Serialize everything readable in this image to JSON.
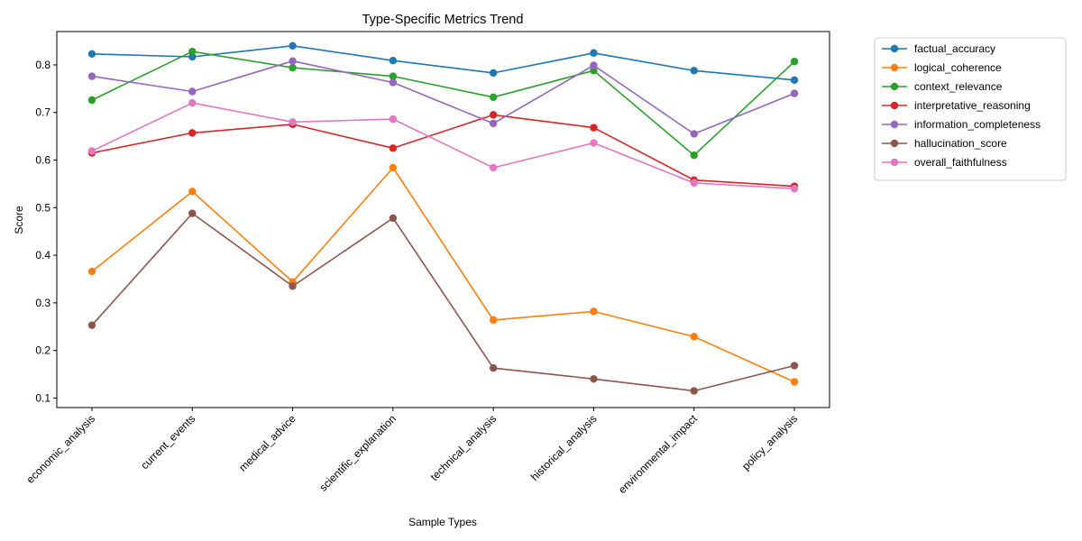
{
  "chart_data": {
    "type": "line",
    "title": "Type-Specific Metrics Trend",
    "xlabel": "Sample Types",
    "ylabel": "Score",
    "categories": [
      "economic_analysis",
      "current_events",
      "medical_advice",
      "scientific_explanation",
      "technical_analysis",
      "historical_analysis",
      "environmental_impact",
      "policy_analysis"
    ],
    "yticks": [
      "0.1",
      "0.2",
      "0.3",
      "0.4",
      "0.5",
      "0.6",
      "0.7",
      "0.8"
    ],
    "ylim": [
      0.08,
      0.87
    ],
    "grid": false,
    "legend_position": "outside-right",
    "series": [
      {
        "name": "factual_accuracy",
        "color": "#1f77b4",
        "values": [
          0.823,
          0.817,
          0.84,
          0.809,
          0.783,
          0.825,
          0.788,
          0.768
        ]
      },
      {
        "name": "logical_coherence",
        "color": "#ff7f0e",
        "values": [
          0.366,
          0.534,
          0.344,
          0.584,
          0.264,
          0.282,
          0.229,
          0.134
        ]
      },
      {
        "name": "context_relevance",
        "color": "#2ca02c",
        "values": [
          0.726,
          0.828,
          0.794,
          0.776,
          0.732,
          0.788,
          0.61,
          0.807
        ]
      },
      {
        "name": "interpretative_reasoning",
        "color": "#d62728",
        "values": [
          0.615,
          0.657,
          0.675,
          0.625,
          0.695,
          0.668,
          0.558,
          0.545
        ]
      },
      {
        "name": "information_completeness",
        "color": "#9467bd",
        "values": [
          0.776,
          0.744,
          0.808,
          0.763,
          0.677,
          0.799,
          0.655,
          0.74
        ]
      },
      {
        "name": "hallucination_score",
        "color": "#8c564b",
        "values": [
          0.253,
          0.488,
          0.335,
          0.478,
          0.163,
          0.14,
          0.115,
          0.168
        ]
      },
      {
        "name": "overall_faithfulness",
        "color": "#e377c2",
        "values": [
          0.619,
          0.72,
          0.68,
          0.686,
          0.584,
          0.636,
          0.552,
          0.54
        ]
      }
    ]
  }
}
